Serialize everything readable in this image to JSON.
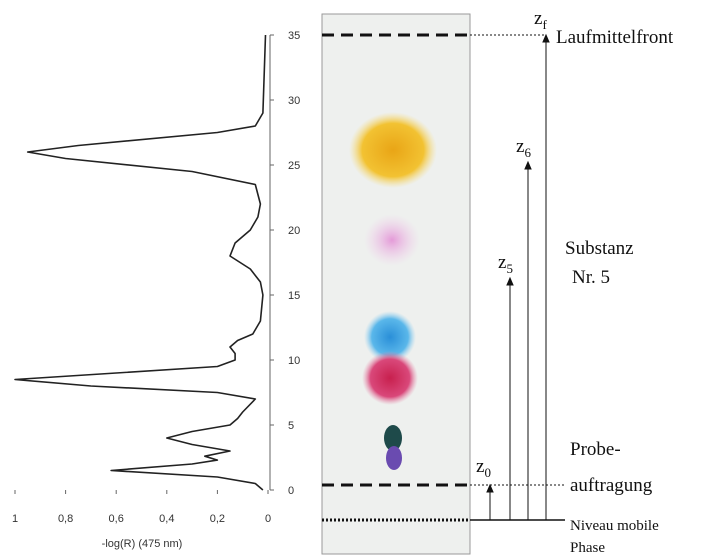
{
  "chart_data": {
    "type": "line",
    "xlabel": "-log(R) (475 nm)",
    "xlim": [
      1,
      0
    ],
    "xticks": [
      1,
      {
        "value": 0.8,
        "label": "0,8"
      },
      {
        "value": 0.6,
        "label": "0,6"
      },
      {
        "value": 0.4,
        "label": "0,4"
      },
      {
        "value": 0.2,
        "label": "0,2"
      },
      0
    ],
    "ylim": [
      0,
      35
    ],
    "yticks": [
      0,
      5,
      10,
      15,
      20,
      25,
      30,
      35
    ],
    "color": "#222222",
    "y": [
      0,
      0.5,
      1,
      1.5,
      2,
      2.3,
      2.6,
      3,
      3.5,
      4,
      4.5,
      5,
      5.5,
      6,
      7,
      7.5,
      8,
      8.5,
      9,
      9.5,
      10,
      10.5,
      11,
      11.5,
      12,
      13,
      15,
      16,
      17,
      18,
      19,
      20,
      21,
      22,
      23.5,
      24.5,
      25.5,
      26,
      26.5,
      27.5,
      28,
      29,
      35
    ],
    "values": [
      0.02,
      0.05,
      0.2,
      0.62,
      0.3,
      0.2,
      0.25,
      0.15,
      0.3,
      0.4,
      0.3,
      0.15,
      0.12,
      0.1,
      0.05,
      0.2,
      0.7,
      1.0,
      0.6,
      0.2,
      0.13,
      0.13,
      0.15,
      0.12,
      0.06,
      0.03,
      0.02,
      0.03,
      0.07,
      0.15,
      0.13,
      0.07,
      0.04,
      0.03,
      0.05,
      0.3,
      0.8,
      0.95,
      0.75,
      0.2,
      0.05,
      0.02,
      0.01
    ]
  },
  "diagram": {
    "z_labels": [
      {
        "letter": "z",
        "index": "0"
      },
      {
        "letter": "z",
        "index": "5"
      },
      {
        "letter": "z",
        "index": "6"
      },
      {
        "letter": "z",
        "index": "f"
      }
    ],
    "front": "Laufmittelfront",
    "substance": [
      "Substanz",
      "Nr. 5"
    ],
    "application": [
      "Probe-",
      "auftragung"
    ],
    "level": [
      "Niveau mobile",
      "Phase"
    ]
  }
}
